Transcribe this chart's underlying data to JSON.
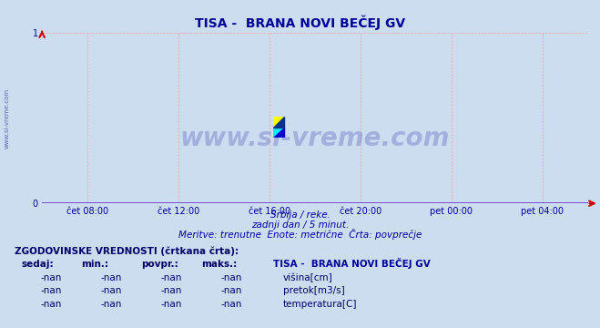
{
  "title": "TISA -  BRANA NOVI BEČEJ GV",
  "title_color": "#000099",
  "bg_color": "#ccddf0",
  "plot_bg_color": "#ccddf0",
  "grid_color": "#ff9999",
  "axis_color": "#000099",
  "x_axis_color": "#6633cc",
  "arrow_color": "#cc0000",
  "ylim": [
    0,
    1
  ],
  "yticks": [
    0,
    1
  ],
  "xtick_labels": [
    "čet 08:00",
    "čet 12:00",
    "čet 16:00",
    "čet 20:00",
    "pet 00:00",
    "pet 04:00"
  ],
  "xtick_positions": [
    0.0833,
    0.25,
    0.4167,
    0.5833,
    0.75,
    0.9167
  ],
  "subtitle1": "Srbija / reke.",
  "subtitle2": "zadnji dan / 5 minut.",
  "subtitle3": "Meritve: trenutne  Enote: metrične  Črta: povprečje",
  "subtitle_color": "#000099",
  "watermark": "www.si-vreme.com",
  "watermark_color": "#000099",
  "watermark_alpha": 0.2,
  "side_text": "www.si-vreme.com",
  "side_color": "#000099",
  "legend_title": "TISA -  BRANA NOVI BEČEJ GV",
  "legend_title_color": "#000099",
  "hist_label": "ZGODOVINSKE VREDNOSTI (črtkana črta):",
  "hist_label_color": "#000066",
  "col_headers": [
    "sedaj:",
    "min.:",
    "povpr.:",
    "maks.:"
  ],
  "rows": [
    [
      "-nan",
      "-nan",
      "-nan",
      "-nan",
      "#0000cc",
      "višina[cm]"
    ],
    [
      "-nan",
      "-nan",
      "-nan",
      "-nan",
      "#00aa00",
      "pretok[m3/s]"
    ],
    [
      "-nan",
      "-nan",
      "-nan",
      "-nan",
      "#cc0000",
      "temperatura[C]"
    ]
  ]
}
